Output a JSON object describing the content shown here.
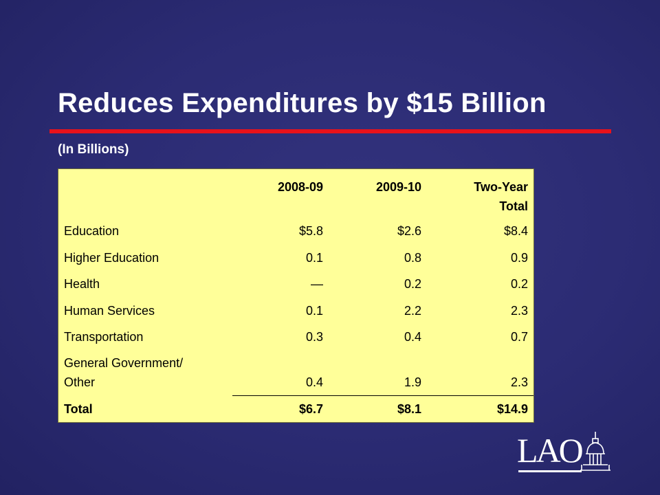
{
  "slide": {
    "title": "Reduces Expenditures by $15 Billion",
    "subtitle": "(In Billions)"
  },
  "table": {
    "headers": [
      "2008-09",
      "2009-10",
      "Two-Year",
      "Total"
    ],
    "rows": [
      {
        "label": "Education",
        "v1": "$5.8",
        "v2": "$2.6",
        "v3": "$8.4"
      },
      {
        "label": "Higher Education",
        "v1": "0.1",
        "v2": "0.8",
        "v3": "0.9"
      },
      {
        "label": "Health",
        "v1": "—",
        "v2": "0.2",
        "v3": "0.2"
      },
      {
        "label": "Human Services",
        "v1": "0.1",
        "v2": "2.2",
        "v3": "2.3"
      },
      {
        "label": "Transportation",
        "v1": "0.3",
        "v2": "0.4",
        "v3": "0.7"
      },
      {
        "label_line1": "General Government/",
        "label_line2": "Other",
        "v1": "0.4",
        "v2": "1.9",
        "v3": "2.3"
      }
    ],
    "total": {
      "label": "Total",
      "v1": "$6.7",
      "v2": "$8.1",
      "v3": "$14.9"
    }
  },
  "logo": {
    "text": "LAO",
    "icon": "capitol-dome-icon"
  }
}
